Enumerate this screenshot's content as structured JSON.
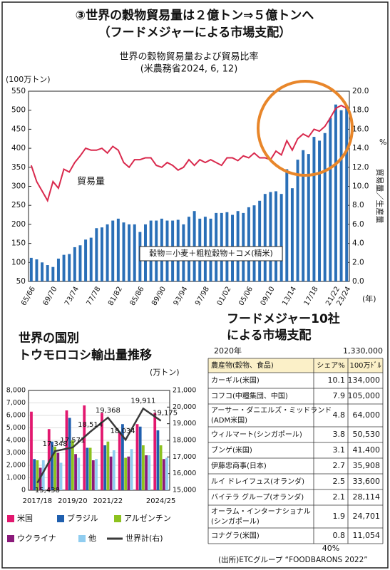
{
  "header": {
    "title": "③世界の穀物貿易量は２億トン⇒５億トンへ",
    "subtitle": "（フードメジャーによる市場支配）"
  },
  "chart_data": [
    {
      "type": "bar",
      "title": "世界の穀物貿易量および貿易比率",
      "subtitle": "(米農務省2024, 6, 12)",
      "ylabel": "(100万トン)",
      "y2label": "貿易量／生産量",
      "y2unit": "%",
      "xlabel": "(年)",
      "annotations": [
        "穀物＝小麦＋粗粒穀物＋コメ(精米)"
      ],
      "categories": [
        "65/66",
        null,
        null,
        null,
        "69/70",
        null,
        null,
        null,
        "73/74",
        null,
        null,
        null,
        "77/78",
        null,
        null,
        null,
        "81/82",
        null,
        null,
        null,
        "85/86",
        null,
        null,
        null,
        "89/90",
        null,
        null,
        null,
        "93/94",
        null,
        null,
        null,
        "97/98",
        null,
        null,
        null,
        "01/02",
        null,
        null,
        null,
        "05/06",
        null,
        null,
        null,
        "09/10",
        null,
        null,
        null,
        "13/14",
        null,
        null,
        null,
        "17/18",
        null,
        null,
        null,
        "21/22",
        null,
        "23/24"
      ],
      "series": [
        {
          "name": "貿易量",
          "color": "#2a6fb7",
          "values": [
            112,
            108,
            100,
            93,
            88,
            110,
            120,
            122,
            140,
            145,
            160,
            165,
            190,
            192,
            200,
            210,
            215,
            205,
            200,
            200,
            180,
            200,
            210,
            210,
            215,
            210,
            210,
            212,
            200,
            220,
            235,
            215,
            220,
            215,
            230,
            230,
            232,
            225,
            235,
            230,
            245,
            250,
            262,
            280,
            285,
            287,
            280,
            345,
            295,
            370,
            395,
            385,
            430,
            420,
            440,
            480,
            515,
            500,
            510
          ]
        },
        {
          "type": "line",
          "axis": "y2",
          "color": "#d9294d",
          "values": [
            12.2,
            10.5,
            9.5,
            8.5,
            10.5,
            9.8,
            11.8,
            11.5,
            12.5,
            13.2,
            14,
            13.8,
            13.8,
            14,
            13.5,
            14.2,
            13.8,
            12.5,
            12,
            12.8,
            12.8,
            13,
            13,
            12.2,
            12,
            12.5,
            12.2,
            11.7,
            12,
            12.8,
            12.2,
            12.8,
            12.5,
            12.8,
            12.5,
            12.2,
            13,
            13,
            12.7,
            13.2,
            13,
            13.5,
            13,
            13,
            12.8,
            13.7,
            13.3,
            14.8,
            13.8,
            15,
            15.5,
            15.2,
            16,
            15.8,
            16.3,
            17.2,
            18.2,
            18.5,
            18.2
          ]
        }
      ],
      "ylim": [
        50,
        550
      ],
      "yticks": [
        50,
        100,
        150,
        200,
        250,
        300,
        350,
        400,
        450,
        500,
        550
      ],
      "y2lim": [
        0,
        20
      ],
      "y2ticks": [
        {
          "value": 0,
          "label": "0.0"
        },
        {
          "value": 2,
          "label": "2.0"
        },
        {
          "value": 4,
          "label": "4.0"
        },
        {
          "value": 6,
          "label": "6.0"
        },
        {
          "value": 8,
          "label": "8.0"
        },
        {
          "value": 10,
          "label": "10.0"
        },
        {
          "value": 12,
          "label": "12.0"
        },
        {
          "value": 14,
          "label": "14.0"
        },
        {
          "value": 16,
          "label": "16.0"
        },
        {
          "value": 18,
          "label": "18.0"
        },
        {
          "value": 20,
          "label": "20.0"
        }
      ],
      "grid": false
    },
    {
      "type": "bar",
      "title": [
        "世界の国別",
        "トウモロコシ輸出量推移"
      ],
      "ylabel": "(万トン)",
      "categories": [
        "2017/18",
        null,
        "2019/20",
        null,
        "2021/22",
        null,
        null,
        "2024/25"
      ],
      "series": [
        {
          "name": "米国",
          "color": "#e2186f",
          "values": [
            6300,
            4900,
            6400,
            6800,
            6200,
            4700,
            5300,
            6200
          ]
        },
        {
          "name": "ブラジル",
          "color": "#1f5fae",
          "values": [
            2500,
            3900,
            5800,
            3400,
            3600,
            5300,
            5100,
            4800
          ]
        },
        {
          "name": "アルゼンチン",
          "color": "#8dc21f",
          "values": [
            2400,
            3500,
            4000,
            3400,
            3900,
            2600,
            3600,
            3600
          ]
        },
        {
          "name": "ウクライナ",
          "color": "#8b1a7a",
          "values": [
            1800,
            3000,
            2900,
            2400,
            2700,
            2700,
            2800,
            2500
          ]
        },
        {
          "name": "他",
          "color": "#90cdf0",
          "values": [
            2400,
            2200,
            2600,
            2500,
            3200,
            3300,
            2800,
            2600
          ]
        },
        {
          "name": "世界計(右)",
          "type": "line",
          "axis": "y2",
          "color": "#3a3a3a",
          "values": [
            15438,
            17348,
            17571,
            18514,
            19368,
            18034,
            19911,
            19175
          ],
          "value_labels": [
            "15,438",
            "17,348",
            "17,571",
            "18,514",
            "19,368",
            "18,034",
            "19,911",
            "19,175"
          ]
        }
      ],
      "ylim": [
        0,
        8000
      ],
      "yticks": [
        0,
        {
          "value": 1000,
          "label": "1,000"
        },
        {
          "value": 2000,
          "label": "2,000"
        },
        {
          "value": 3000,
          "label": "3,000"
        },
        {
          "value": 4000,
          "label": "4,000"
        },
        {
          "value": 5000,
          "label": "5,000"
        },
        {
          "value": 6000,
          "label": "6,000"
        },
        {
          "value": 7000,
          "label": "7,000"
        },
        {
          "value": 8000,
          "label": "8,000"
        }
      ],
      "y2lim": [
        15000,
        21000
      ],
      "y2ticks": [
        {
          "value": 15000,
          "label": "15,000"
        },
        {
          "value": 16000,
          "label": "16,000"
        },
        {
          "value": 17000,
          "label": "17,000"
        },
        {
          "value": 18000,
          "label": "18,000"
        },
        {
          "value": 19000,
          "label": "19,000"
        },
        {
          "value": 20000,
          "label": "20,000"
        },
        {
          "value": 21000,
          "label": "21,000"
        }
      ],
      "grid": true
    }
  ],
  "table": {
    "title": [
      "フードメジャー10社",
      "による市場支配"
    ],
    "year": "2020年",
    "total": "1,330,000",
    "headers": [
      "農産物(穀物、食品)",
      "シェア%",
      "100万ﾄﾞﾙ"
    ],
    "rows": [
      {
        "name": [
          "カーギル(米国)"
        ],
        "share": 10.1,
        "value": "134,000"
      },
      {
        "name": [
          "コフコ(中糧集団、中国)"
        ],
        "share": 7.9,
        "value": "105,000"
      },
      {
        "name": [
          "アーサー・ダニエルズ・ミッドランド",
          "(ADM米国)"
        ],
        "share": 4.8,
        "value": "64,000"
      },
      {
        "name": [
          "ウィルマート(シンガポール)"
        ],
        "share": 3.8,
        "value": "50,530"
      },
      {
        "name": [
          "ブンゲ(米国)"
        ],
        "share": 3.1,
        "value": "41,400"
      },
      {
        "name": [
          "伊藤忠商事(日本)"
        ],
        "share": 2.7,
        "value": "35,908"
      },
      {
        "name": [
          "ルイ ドレイフュス(オランダ)"
        ],
        "share": 2.5,
        "value": "33,600"
      },
      {
        "name": [
          "バイテラ グループ(オランダ)"
        ],
        "share": 2.1,
        "value": "28,114"
      },
      {
        "name": [
          "オーラム・インターナショナル",
          "(シンガポール)"
        ],
        "share": 1.9,
        "value": "24,701"
      },
      {
        "name": [
          "コナグラ(米国)"
        ],
        "share": 0.8,
        "value": "11,054"
      }
    ],
    "footer": "40%",
    "source": "(出所)ETCグループ “FOODBARONS 2022”"
  }
}
